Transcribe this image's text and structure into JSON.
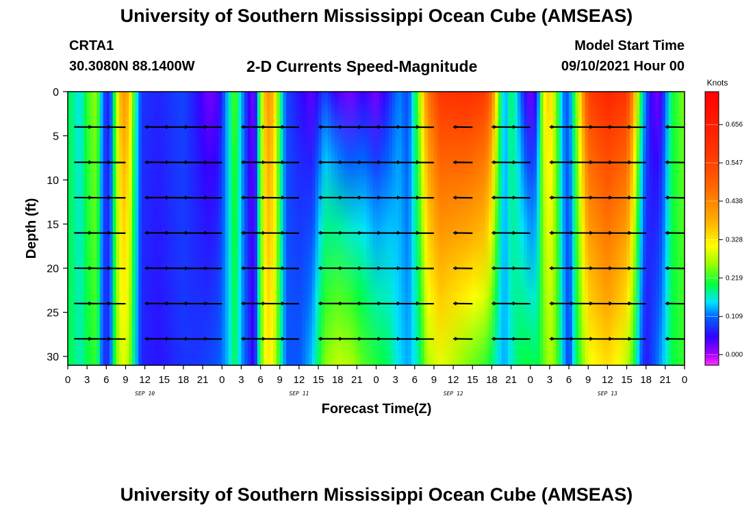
{
  "page": {
    "title_top": "University of Southern Mississippi Ocean Cube (AMSEAS)",
    "title_bottom": "University of Southern Mississippi Ocean Cube (AMSEAS)",
    "station_name": "CRTA1",
    "station_coords": "30.3080N  88.1400W",
    "subtitle": "2-D Currents Speed-Magnitude",
    "model_start_label": "Model Start Time",
    "model_start_value": "09/10/2021 Hour 00"
  },
  "chart_data": {
    "type": "heatmap",
    "title": "2-D Currents Speed-Magnitude",
    "xlabel": "Forecast Time(Z)",
    "ylabel": "Depth (ft)",
    "colorbar_label": "Knots",
    "colorbar_ticks": [
      "0.656",
      "0.547",
      "0.438",
      "0.328",
      "0.219",
      "0.109",
      "0.000"
    ],
    "colorbar_range": [
      -0.03,
      0.75
    ],
    "xlim": [
      0,
      96
    ],
    "ylim": [
      31,
      0
    ],
    "x_tick_step": 3,
    "x_tick_labels": [
      "0",
      "3",
      "6",
      "9",
      "12",
      "15",
      "18",
      "21",
      "0",
      "3",
      "6",
      "9",
      "12",
      "15",
      "18",
      "21",
      "0",
      "3",
      "6",
      "9",
      "12",
      "15",
      "18",
      "21",
      "0",
      "3",
      "6",
      "9",
      "12",
      "15",
      "18",
      "21",
      "0"
    ],
    "y_ticks": [
      0,
      5,
      10,
      15,
      20,
      25,
      30
    ],
    "y_tick_labels": [
      "0",
      "5",
      "10",
      "15",
      "20",
      "25",
      "30"
    ],
    "date_labels": [
      {
        "text": "SEP 10",
        "hour": 12
      },
      {
        "text": "SEP 11",
        "hour": 36
      },
      {
        "text": "SEP 12",
        "hour": 60
      },
      {
        "text": "SEP 13",
        "hour": 84
      }
    ],
    "speed_profile_knots": [
      {
        "hour": 0,
        "surface": 0.2,
        "bottom": 0.2
      },
      {
        "hour": 2,
        "surface": 0.15,
        "bottom": 0.17
      },
      {
        "hour": 3,
        "surface": 0.22,
        "bottom": 0.2
      },
      {
        "hour": 4.5,
        "surface": 0.26,
        "bottom": 0.22
      },
      {
        "hour": 5.5,
        "surface": 0.1,
        "bottom": 0.08
      },
      {
        "hour": 6.5,
        "surface": 0.06,
        "bottom": 0.08
      },
      {
        "hour": 7.5,
        "surface": 0.25,
        "bottom": 0.24
      },
      {
        "hour": 8.5,
        "surface": 0.42,
        "bottom": 0.3
      },
      {
        "hour": 9.5,
        "surface": 0.38,
        "bottom": 0.27
      },
      {
        "hour": 10.5,
        "surface": 0.18,
        "bottom": 0.15
      },
      {
        "hour": 11.5,
        "surface": 0.08,
        "bottom": 0.07
      },
      {
        "hour": 14,
        "surface": 0.07,
        "bottom": 0.06
      },
      {
        "hour": 18,
        "surface": 0.09,
        "bottom": 0.08
      },
      {
        "hour": 20,
        "surface": 0.06,
        "bottom": 0.08
      },
      {
        "hour": 22,
        "surface": 0.02,
        "bottom": 0.09
      },
      {
        "hour": 23.5,
        "surface": 0.04,
        "bottom": 0.1
      },
      {
        "hour": 25,
        "surface": 0.15,
        "bottom": 0.14
      },
      {
        "hour": 26,
        "surface": 0.24,
        "bottom": 0.2
      },
      {
        "hour": 27,
        "surface": 0.14,
        "bottom": 0.13
      },
      {
        "hour": 28,
        "surface": 0.06,
        "bottom": 0.09
      },
      {
        "hour": 29,
        "surface": 0.01,
        "bottom": 0.04
      },
      {
        "hour": 30,
        "surface": 0.24,
        "bottom": 0.22
      },
      {
        "hour": 31,
        "surface": 0.42,
        "bottom": 0.33
      },
      {
        "hour": 32,
        "surface": 0.38,
        "bottom": 0.3
      },
      {
        "hour": 33,
        "surface": 0.2,
        "bottom": 0.2
      },
      {
        "hour": 34,
        "surface": 0.09,
        "bottom": 0.1
      },
      {
        "hour": 36,
        "surface": 0.06,
        "bottom": 0.1
      },
      {
        "hour": 38,
        "surface": 0.03,
        "bottom": 0.14
      },
      {
        "hour": 40,
        "surface": 0.09,
        "bottom": 0.25
      },
      {
        "hour": 42,
        "surface": 0.04,
        "bottom": 0.28
      },
      {
        "hour": 44,
        "surface": 0.02,
        "bottom": 0.27
      },
      {
        "hour": 46,
        "surface": 0.05,
        "bottom": 0.23
      },
      {
        "hour": 48,
        "surface": 0.02,
        "bottom": 0.21
      },
      {
        "hour": 50,
        "surface": 0.07,
        "bottom": 0.19
      },
      {
        "hour": 51.5,
        "surface": 0.12,
        "bottom": 0.15
      },
      {
        "hour": 53,
        "surface": 0.09,
        "bottom": 0.13
      },
      {
        "hour": 54.5,
        "surface": 0.23,
        "bottom": 0.17
      },
      {
        "hour": 56,
        "surface": 0.45,
        "bottom": 0.27
      },
      {
        "hour": 58,
        "surface": 0.58,
        "bottom": 0.3
      },
      {
        "hour": 62,
        "surface": 0.6,
        "bottom": 0.25
      },
      {
        "hour": 65,
        "surface": 0.57,
        "bottom": 0.22
      },
      {
        "hour": 66,
        "surface": 0.47,
        "bottom": 0.19
      },
      {
        "hour": 67,
        "surface": 0.25,
        "bottom": 0.15
      },
      {
        "hour": 68,
        "surface": 0.12,
        "bottom": 0.13
      },
      {
        "hour": 69,
        "surface": 0.2,
        "bottom": 0.16
      },
      {
        "hour": 70,
        "surface": 0.14,
        "bottom": 0.19
      },
      {
        "hour": 71,
        "surface": 0.07,
        "bottom": 0.2
      },
      {
        "hour": 72,
        "surface": 0.02,
        "bottom": 0.2
      },
      {
        "hour": 73,
        "surface": 0.06,
        "bottom": 0.19
      },
      {
        "hour": 74,
        "surface": 0.3,
        "bottom": 0.23
      },
      {
        "hour": 75,
        "surface": 0.36,
        "bottom": 0.27
      },
      {
        "hour": 76,
        "surface": 0.25,
        "bottom": 0.24
      },
      {
        "hour": 77,
        "surface": 0.12,
        "bottom": 0.15
      },
      {
        "hour": 78,
        "surface": 0.1,
        "bottom": 0.08
      },
      {
        "hour": 79,
        "surface": 0.22,
        "bottom": 0.18
      },
      {
        "hour": 81,
        "surface": 0.55,
        "bottom": 0.3
      },
      {
        "hour": 84,
        "surface": 0.63,
        "bottom": 0.34
      },
      {
        "hour": 87,
        "surface": 0.58,
        "bottom": 0.28
      },
      {
        "hour": 88,
        "surface": 0.42,
        "bottom": 0.22
      },
      {
        "hour": 89,
        "surface": 0.22,
        "bottom": 0.12
      },
      {
        "hour": 90,
        "surface": 0.1,
        "bottom": 0.06
      },
      {
        "hour": 91,
        "surface": 0.04,
        "bottom": 0.09
      },
      {
        "hour": 92,
        "surface": 0.02,
        "bottom": 0.12
      },
      {
        "hour": 93,
        "surface": 0.1,
        "bottom": 0.15
      },
      {
        "hour": 94,
        "surface": 0.2,
        "bottom": 0.2
      },
      {
        "hour": 96,
        "surface": 0.25,
        "bottom": 0.22
      }
    ],
    "vector_depths_ft": [
      4,
      8,
      12,
      16,
      20,
      24,
      28
    ],
    "vector_groups_hours": [
      {
        "start": 1,
        "end": 9
      },
      {
        "start": 12,
        "end": 24
      },
      {
        "start": 27,
        "end": 36
      },
      {
        "start": 39,
        "end": 57
      },
      {
        "start": 60,
        "end": 63
      },
      {
        "start": 66,
        "end": 72
      },
      {
        "start": 75,
        "end": 90
      },
      {
        "start": 93,
        "end": 96
      }
    ],
    "colormap": [
      {
        "v": -0.03,
        "color": "#ff33ff"
      },
      {
        "v": 0.0,
        "color": "#aa00ff"
      },
      {
        "v": 0.05,
        "color": "#3300ff"
      },
      {
        "v": 0.109,
        "color": "#0066ff"
      },
      {
        "v": 0.15,
        "color": "#00e5ff"
      },
      {
        "v": 0.2,
        "color": "#00ff40"
      },
      {
        "v": 0.26,
        "color": "#9dff00"
      },
      {
        "v": 0.31,
        "color": "#ffff00"
      },
      {
        "v": 0.38,
        "color": "#ffb000"
      },
      {
        "v": 0.48,
        "color": "#ff6600"
      },
      {
        "v": 0.58,
        "color": "#ff3300"
      },
      {
        "v": 0.75,
        "color": "#ff0000"
      }
    ]
  }
}
